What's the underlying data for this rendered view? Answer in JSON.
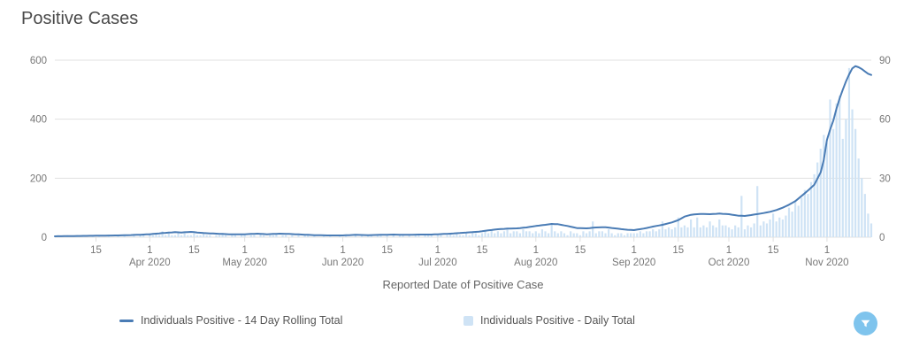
{
  "title": "Positive Cases",
  "chart_data": {
    "type": "mixed",
    "title": "Positive Cases",
    "xlabel": "Reported Date of Positive Case",
    "x_domain": {
      "start": "2020-03-02",
      "end": "2020-11-15",
      "days": 259
    },
    "left_axis": {
      "max": 600,
      "ticks": [
        0,
        200,
        400,
        600
      ]
    },
    "right_axis": {
      "max": 90,
      "ticks": [
        0,
        30,
        60,
        90
      ]
    },
    "grid": true,
    "x_ticks": [
      {
        "i": 13,
        "t": "15"
      },
      {
        "i": 30,
        "t": "1",
        "m": "Apr 2020"
      },
      {
        "i": 44,
        "t": "15"
      },
      {
        "i": 60,
        "t": "1",
        "m": "May 2020"
      },
      {
        "i": 74,
        "t": "15"
      },
      {
        "i": 91,
        "t": "1",
        "m": "Jun 2020"
      },
      {
        "i": 105,
        "t": "15"
      },
      {
        "i": 121,
        "t": "1",
        "m": "Jul 2020"
      },
      {
        "i": 135,
        "t": "15"
      },
      {
        "i": 152,
        "t": "1",
        "m": "Aug 2020"
      },
      {
        "i": 166,
        "t": "15"
      },
      {
        "i": 183,
        "t": "1",
        "m": "Sep 2020"
      },
      {
        "i": 197,
        "t": "15"
      },
      {
        "i": 213,
        "t": "1",
        "m": "Oct 2020"
      },
      {
        "i": 227,
        "t": "15"
      },
      {
        "i": 244,
        "t": "1",
        "m": "Nov 2020"
      }
    ],
    "series": [
      {
        "name": "Individuals Positive - 14 Day Rolling Total",
        "type": "line",
        "axis": "left",
        "color": "#4a7cb5",
        "keypoints": [
          [
            0,
            3
          ],
          [
            6,
            4
          ],
          [
            13,
            5
          ],
          [
            20,
            6
          ],
          [
            26,
            8
          ],
          [
            30,
            10
          ],
          [
            34,
            14
          ],
          [
            38,
            17
          ],
          [
            40,
            16
          ],
          [
            43,
            18
          ],
          [
            47,
            14
          ],
          [
            51,
            12
          ],
          [
            55,
            10
          ],
          [
            60,
            10
          ],
          [
            64,
            12
          ],
          [
            67,
            10
          ],
          [
            71,
            12
          ],
          [
            74,
            11
          ],
          [
            78,
            9
          ],
          [
            82,
            7
          ],
          [
            86,
            6
          ],
          [
            91,
            6
          ],
          [
            95,
            8
          ],
          [
            99,
            7
          ],
          [
            103,
            8
          ],
          [
            107,
            9
          ],
          [
            111,
            8
          ],
          [
            115,
            9
          ],
          [
            119,
            9
          ],
          [
            121,
            10
          ],
          [
            125,
            12
          ],
          [
            129,
            15
          ],
          [
            133,
            18
          ],
          [
            135,
            20
          ],
          [
            137,
            23
          ],
          [
            140,
            27
          ],
          [
            143,
            29
          ],
          [
            146,
            30
          ],
          [
            149,
            33
          ],
          [
            152,
            38
          ],
          [
            155,
            42
          ],
          [
            157,
            45
          ],
          [
            159,
            44
          ],
          [
            162,
            38
          ],
          [
            165,
            31
          ],
          [
            168,
            30
          ],
          [
            171,
            33
          ],
          [
            174,
            34
          ],
          [
            177,
            30
          ],
          [
            180,
            26
          ],
          [
            183,
            24
          ],
          [
            186,
            29
          ],
          [
            189,
            36
          ],
          [
            192,
            42
          ],
          [
            195,
            50
          ],
          [
            197,
            58
          ],
          [
            199,
            70
          ],
          [
            201,
            76
          ],
          [
            204,
            79
          ],
          [
            207,
            78
          ],
          [
            210,
            80
          ],
          [
            213,
            78
          ],
          [
            216,
            73
          ],
          [
            218,
            72
          ],
          [
            220,
            75
          ],
          [
            223,
            80
          ],
          [
            226,
            86
          ],
          [
            228,
            92
          ],
          [
            230,
            100
          ],
          [
            232,
            110
          ],
          [
            234,
            122
          ],
          [
            236,
            140
          ],
          [
            238,
            158
          ],
          [
            240,
            178
          ],
          [
            242,
            220
          ],
          [
            243,
            262
          ],
          [
            244,
            330
          ],
          [
            245,
            365
          ],
          [
            246,
            395
          ],
          [
            247,
            435
          ],
          [
            248,
            470
          ],
          [
            249,
            500
          ],
          [
            250,
            528
          ],
          [
            251,
            552
          ],
          [
            252,
            572
          ],
          [
            253,
            580
          ],
          [
            254,
            576
          ],
          [
            255,
            570
          ],
          [
            256,
            562
          ],
          [
            257,
            554
          ],
          [
            258,
            550
          ]
        ]
      },
      {
        "name": "Individuals Positive - Daily Total",
        "type": "bar",
        "axis": "right",
        "color": "#cfe3f5",
        "values": [
          0,
          1,
          0,
          0,
          1,
          0,
          0,
          1,
          0,
          1,
          0,
          0,
          1,
          0,
          1,
          0,
          0,
          1,
          0,
          0,
          1,
          0,
          1,
          0,
          0,
          1,
          0,
          1,
          1,
          0,
          2,
          1,
          2,
          1,
          3,
          1,
          2,
          1,
          1,
          2,
          1,
          2,
          1,
          1,
          2,
          1,
          1,
          2,
          1,
          1,
          0,
          1,
          1,
          2,
          1,
          0,
          1,
          1,
          0,
          1,
          1,
          0,
          1,
          1,
          0,
          2,
          1,
          0,
          1,
          1,
          2,
          0,
          1,
          1,
          0,
          1,
          0,
          1,
          0,
          1,
          1,
          0,
          1,
          0,
          0,
          1,
          0,
          1,
          0,
          0,
          1,
          0,
          1,
          0,
          0,
          1,
          0,
          1,
          0,
          1,
          1,
          0,
          1,
          1,
          0,
          1,
          0,
          1,
          0,
          1,
          1,
          0,
          1,
          0,
          1,
          1,
          0,
          1,
          1,
          1,
          0,
          1,
          1,
          0,
          1,
          2,
          1,
          2,
          1,
          1,
          2,
          1,
          3,
          2,
          1,
          2,
          3,
          2,
          4,
          2,
          3,
          2,
          3,
          4,
          2,
          3,
          3,
          2,
          4,
          3,
          3,
          2,
          3,
          2,
          4,
          3,
          2,
          7,
          3,
          2,
          3,
          2,
          1,
          3,
          2,
          2,
          1,
          3,
          2,
          3,
          8,
          2,
          3,
          3,
          2,
          4,
          2,
          1,
          2,
          2,
          1,
          2,
          2,
          2,
          2,
          3,
          2,
          3,
          3,
          4,
          3,
          4,
          8,
          4,
          5,
          4,
          5,
          10,
          5,
          6,
          5,
          9,
          5,
          10,
          5,
          6,
          5,
          8,
          6,
          5,
          9,
          6,
          6,
          5,
          4,
          6,
          5,
          21,
          4,
          6,
          5,
          7,
          26,
          6,
          8,
          7,
          9,
          12,
          8,
          10,
          9,
          11,
          15,
          13,
          18,
          16,
          20,
          24,
          22,
          28,
          32,
          38,
          45,
          52,
          48,
          70,
          55,
          68,
          72,
          50,
          60,
          86,
          65,
          55,
          40,
          30,
          22,
          12,
          7
        ]
      }
    ],
    "colors": {
      "grid": "#e0e0e0",
      "tick_text": "#777777",
      "axis_title": "#666666"
    }
  },
  "legend": [
    {
      "label": "Individuals Positive - 14 Day Rolling Total",
      "marker": "line-dash",
      "color": "#4a7cb5"
    },
    {
      "label": "Individuals Positive - Daily Total",
      "marker": "square",
      "color": "#cfe3f5"
    }
  ],
  "filter_button": {
    "icon": "filter-funnel-icon",
    "color": "#7fc4ed"
  }
}
